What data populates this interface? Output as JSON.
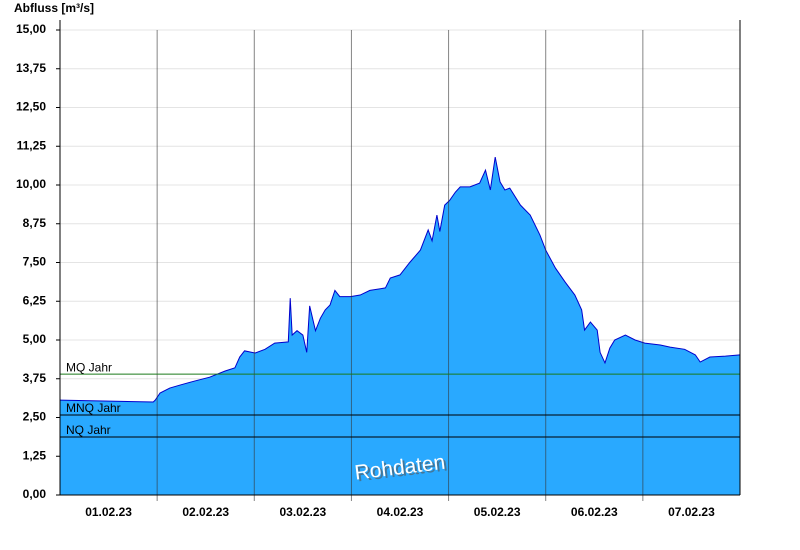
{
  "chart_data": {
    "type": "area",
    "title": "Abfluss [m³/s]",
    "annotation": "Rohdaten",
    "color": "#29a9ff",
    "line_color": "#0000cc",
    "x": [
      0,
      0.96,
      0.98,
      1.03,
      1.13,
      1.24,
      1.39,
      1.54,
      1.7,
      1.8,
      1.85,
      1.9,
      2.01,
      2.11,
      2.21,
      2.35,
      2.37,
      2.39,
      2.44,
      2.5,
      2.54,
      2.57,
      2.63,
      2.68,
      2.73,
      2.78,
      2.83,
      2.88,
      2.99,
      3.09,
      3.19,
      3.35,
      3.4,
      3.5,
      3.6,
      3.71,
      3.79,
      3.83,
      3.88,
      3.91,
      3.96,
      4.01,
      4.07,
      4.12,
      4.22,
      4.32,
      4.38,
      4.43,
      4.48,
      4.53,
      4.58,
      4.63,
      4.74,
      4.84,
      4.94,
      5.0,
      5.1,
      5.2,
      5.3,
      5.37,
      5.4,
      5.46,
      5.53,
      5.56,
      5.61,
      5.66,
      5.71,
      5.82,
      5.92,
      6.02,
      6.18,
      6.28,
      6.43,
      6.54,
      6.59,
      6.69,
      6.85,
      7.0
    ],
    "values": [
      3.06,
      3.0,
      3.06,
      3.29,
      3.45,
      3.55,
      3.68,
      3.8,
      4.0,
      4.1,
      4.45,
      4.65,
      4.58,
      4.7,
      4.9,
      4.94,
      6.35,
      5.16,
      5.3,
      5.16,
      4.6,
      6.1,
      5.3,
      5.7,
      5.97,
      6.13,
      6.6,
      6.4,
      6.4,
      6.45,
      6.6,
      6.68,
      7.0,
      7.1,
      7.5,
      7.9,
      8.55,
      8.2,
      9.03,
      8.5,
      9.35,
      9.5,
      9.77,
      9.94,
      9.94,
      10.06,
      10.48,
      9.84,
      10.9,
      10.1,
      9.84,
      9.9,
      9.35,
      9.03,
      8.39,
      7.9,
      7.32,
      6.87,
      6.45,
      5.97,
      5.32,
      5.58,
      5.32,
      4.6,
      4.26,
      4.74,
      5.0,
      5.16,
      5.0,
      4.9,
      4.84,
      4.77,
      4.7,
      4.52,
      4.29,
      4.45,
      4.48,
      4.52
    ],
    "xlim": [
      0,
      7
    ],
    "xticks": [
      {
        "value": 0.5,
        "label": "01.02.23"
      },
      {
        "value": 1.5,
        "label": "02.02.23"
      },
      {
        "value": 2.5,
        "label": "03.02.23"
      },
      {
        "value": 3.5,
        "label": "04.02.23"
      },
      {
        "value": 4.5,
        "label": "05.02.23"
      },
      {
        "value": 5.5,
        "label": "06.02.23"
      },
      {
        "value": 6.5,
        "label": "07.02.23"
      }
    ],
    "xgrid": [
      1,
      2,
      3,
      4,
      5,
      6
    ],
    "ylim": [
      0,
      15
    ],
    "yticks": [
      {
        "value": 0,
        "label": "0,00"
      },
      {
        "value": 1.25,
        "label": "1,25"
      },
      {
        "value": 2.5,
        "label": "2,50"
      },
      {
        "value": 3.75,
        "label": "3,75"
      },
      {
        "value": 5,
        "label": "5,00"
      },
      {
        "value": 6.25,
        "label": "6,25"
      },
      {
        "value": 7.5,
        "label": "7,50"
      },
      {
        "value": 8.75,
        "label": "8,75"
      },
      {
        "value": 10,
        "label": "10,00"
      },
      {
        "value": 11.25,
        "label": "11,25"
      },
      {
        "value": 12.5,
        "label": "12,50"
      },
      {
        "value": 13.75,
        "label": "13,75"
      },
      {
        "value": 15,
        "label": "15,00"
      }
    ],
    "grid": true,
    "ref_lines": [
      {
        "label": "MQ Jahr",
        "value": 3.9,
        "color": "#1a7a1a"
      },
      {
        "label": "MNQ Jahr",
        "value": 2.58,
        "color": "#000000"
      },
      {
        "label": "NQ Jahr",
        "value": 1.87,
        "color": "#000000"
      }
    ]
  }
}
